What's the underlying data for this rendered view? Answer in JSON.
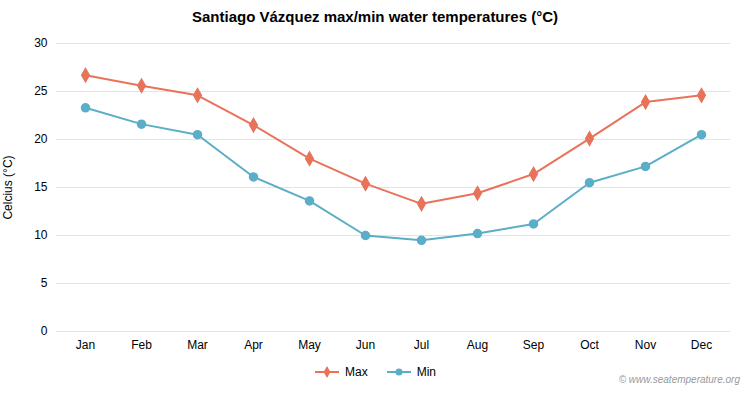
{
  "chart_data": {
    "type": "line",
    "title": "Santiago Vázquez max/min water temperatures (°C)",
    "categories": [
      "Jan",
      "Feb",
      "Mar",
      "Apr",
      "May",
      "Jun",
      "Jul",
      "Aug",
      "Sep",
      "Oct",
      "Nov",
      "Dec"
    ],
    "series": [
      {
        "name": "Max",
        "color": "#E8735A",
        "marker": "diamond",
        "values": [
          26.7,
          25.6,
          24.6,
          21.5,
          18.0,
          15.4,
          13.3,
          14.4,
          16.4,
          20.1,
          23.9,
          24.6
        ]
      },
      {
        "name": "Min",
        "color": "#5BAEC7",
        "marker": "circle",
        "values": [
          23.3,
          21.6,
          20.5,
          16.1,
          13.6,
          10.0,
          9.5,
          10.2,
          11.2,
          15.5,
          17.2,
          20.5
        ]
      }
    ],
    "ylabel": "Celcius (°C)",
    "ylim": [
      0,
      30
    ],
    "yticks": [
      0,
      5,
      10,
      15,
      20,
      25,
      30
    ],
    "grid": true,
    "legend": "bottom",
    "annotations": [
      "© www.seatemperature.org"
    ]
  }
}
